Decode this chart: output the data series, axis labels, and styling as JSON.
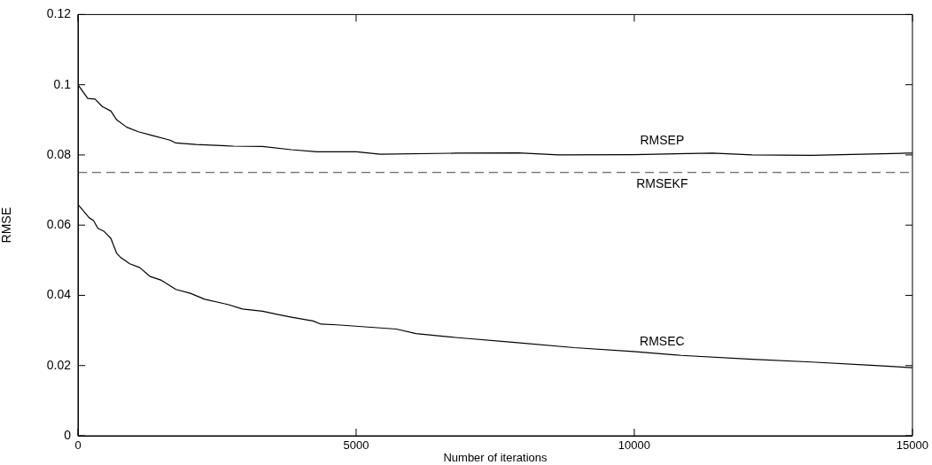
{
  "chart_data": {
    "type": "line",
    "xlabel": "Number of iterations",
    "ylabel": "RMSE",
    "xlim": [
      0,
      15000
    ],
    "xticks": [
      0,
      5000,
      10000,
      15000
    ],
    "ylim": [
      0,
      0.12
    ],
    "yticks": [
      0,
      0.02,
      0.04,
      0.06,
      0.08,
      0.1,
      0.12
    ],
    "grid": false,
    "legend": false,
    "marker": "none",
    "line_style": "solid",
    "series": [
      {
        "name": "RMSEP",
        "color": "#000000",
        "x": [
          0,
          176,
          307,
          436,
          592,
          696,
          877,
          1086,
          1345,
          1656,
          1760,
          2123,
          2799,
          3318,
          3837,
          4296,
          5008,
          5435,
          6785,
          7924,
          8636,
          9984,
          11410,
          12118,
          13187,
          14890,
          15000
        ],
        "values": [
          0.1,
          0.0961,
          0.0959,
          0.0938,
          0.0925,
          0.09,
          0.0879,
          0.0866,
          0.0855,
          0.0842,
          0.0834,
          0.083,
          0.0825,
          0.0824,
          0.0815,
          0.0809,
          0.0809,
          0.0802,
          0.0805,
          0.0806,
          0.08,
          0.0801,
          0.0805,
          0.08,
          0.0799,
          0.0805,
          0.0805
        ]
      },
      {
        "name": "RMSEC",
        "color": "#000000",
        "x": [
          0,
          202,
          280,
          358,
          463,
          592,
          696,
          774,
          930,
          1111,
          1293,
          1500,
          1760,
          2019,
          2279,
          2695,
          2955,
          3318,
          3578,
          3837,
          4226,
          4368,
          4653,
          5720,
          6075,
          6785,
          7852,
          8919,
          9984,
          10840,
          12118,
          13187,
          14252,
          15000
        ],
        "values": [
          0.0659,
          0.0621,
          0.0613,
          0.0591,
          0.0583,
          0.0562,
          0.052,
          0.0507,
          0.049,
          0.0479,
          0.0454,
          0.0443,
          0.0417,
          0.0406,
          0.0389,
          0.0374,
          0.0361,
          0.0355,
          0.0346,
          0.0338,
          0.0327,
          0.0318,
          0.0316,
          0.0304,
          0.0291,
          0.028,
          0.0266,
          0.0251,
          0.024,
          0.0229,
          0.0218,
          0.021,
          0.0201,
          0.0194
        ]
      }
    ],
    "ref_lines": [
      {
        "axis": "y",
        "value": 0.075,
        "label": "RMSEKF",
        "color": "#444444",
        "line_style": "dashed"
      }
    ]
  }
}
